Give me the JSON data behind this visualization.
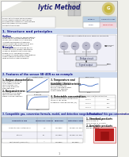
{
  "bg_color": "#f0f0ea",
  "page_bg": "#ffffff",
  "title_text": "lytic Method",
  "title_color": "#1a1a6e",
  "section1_title": "1. Structure and principles",
  "section2_title": "2. Features of the sensor SB-40N as an example",
  "section3_title": "3. Compatible gas, conversion formula, model, and detection range information",
  "section4_title": "4. Products of this gas concentration",
  "section_header_bg": "#d0dcf0",
  "section_header_color": "#1a1a8a",
  "body_color": "#111111",
  "table_header_bg": "#b8cce0",
  "table_pink_bg": "#f0d8e0",
  "accent_red": "#cc1111",
  "accent_blue": "#2244aa",
  "gray_bg": "#e0e0e0",
  "light_gray": "#f4f4f4",
  "chart_line_blue": "#2255bb",
  "chart_line_red": "#cc3333",
  "pdf_red": "#dd2222",
  "sensor_diagram_bg": "#f0f0f8",
  "page_number": "1"
}
